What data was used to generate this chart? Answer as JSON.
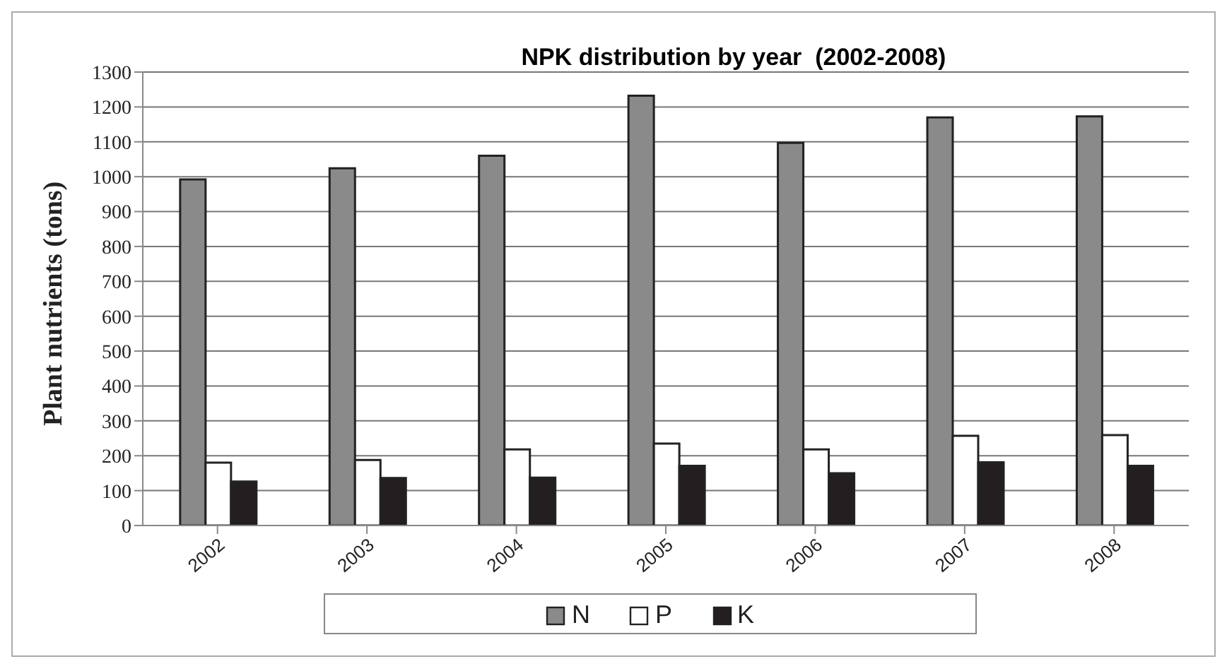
{
  "chart_data": {
    "type": "bar",
    "title": "NPK distribution by year  (2002-2008)",
    "ylabel": "Plant nutrients (tons)",
    "categories": [
      "2002",
      "2003",
      "2004",
      "2005",
      "2006",
      "2007",
      "2008"
    ],
    "series": [
      {
        "name": "N",
        "color": "#8a8a8a",
        "values": [
          992,
          1024,
          1060,
          1232,
          1097,
          1170,
          1173
        ]
      },
      {
        "name": "P",
        "color": "#ffffff",
        "values": [
          180,
          188,
          218,
          235,
          218,
          257,
          259
        ]
      },
      {
        "name": "K",
        "color": "#231f20",
        "values": [
          126,
          136,
          137,
          171,
          150,
          181,
          171
        ]
      }
    ],
    "ylim": [
      0,
      1300
    ],
    "yticks": [
      0,
      100,
      200,
      300,
      400,
      500,
      600,
      700,
      800,
      900,
      1000,
      1100,
      1200,
      1300
    ],
    "grid": "y",
    "legend": "bottom"
  }
}
